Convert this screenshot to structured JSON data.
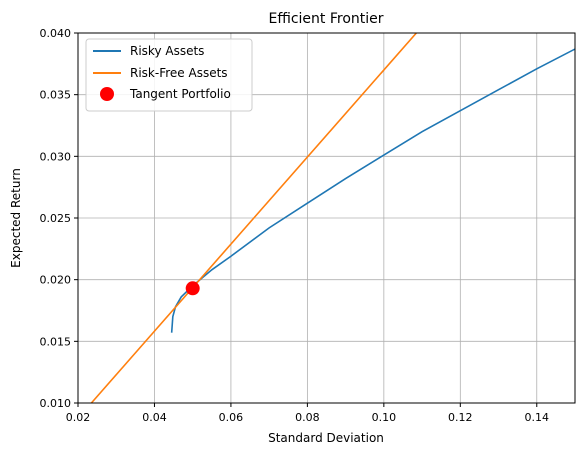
{
  "chart_data": {
    "type": "line",
    "title": "Efficient Frontier",
    "xlabel": "Standard Deviation",
    "ylabel": "Expected Return",
    "xlim": [
      0.02,
      0.15
    ],
    "ylim": [
      0.01,
      0.04
    ],
    "x_ticks": [
      0.02,
      0.04,
      0.06,
      0.08,
      0.1,
      0.12,
      0.14
    ],
    "x_tick_labels": [
      "0.02",
      "0.04",
      "0.06",
      "0.08",
      "0.10",
      "0.12",
      "0.14"
    ],
    "y_ticks": [
      0.01,
      0.015,
      0.02,
      0.025,
      0.03,
      0.035,
      0.04
    ],
    "y_tick_labels": [
      "0.010",
      "0.015",
      "0.020",
      "0.025",
      "0.030",
      "0.035",
      "0.040"
    ],
    "grid": true,
    "legend_position": "top-left",
    "series": [
      {
        "name": "Risky Assets",
        "type": "line",
        "color": "#1f77b4",
        "x": [
          0.0445,
          0.0448,
          0.0455,
          0.047,
          0.05,
          0.055,
          0.06,
          0.07,
          0.08,
          0.09,
          0.1,
          0.11,
          0.12,
          0.13,
          0.14,
          0.15
        ],
        "y": [
          0.0157,
          0.017,
          0.0178,
          0.0186,
          0.0195,
          0.0208,
          0.0219,
          0.0242,
          0.0262,
          0.0282,
          0.0301,
          0.032,
          0.0337,
          0.0354,
          0.0371,
          0.0387
        ]
      },
      {
        "name": "Risk-Free Assets",
        "type": "line",
        "color": "#ff7f0e",
        "x": [
          0.0235,
          0.1085
        ],
        "y": [
          0.01,
          0.04
        ]
      },
      {
        "name": "Tangent Portfolio",
        "type": "scatter",
        "color": "#ff0000",
        "x": [
          0.05
        ],
        "y": [
          0.0193
        ]
      }
    ]
  }
}
